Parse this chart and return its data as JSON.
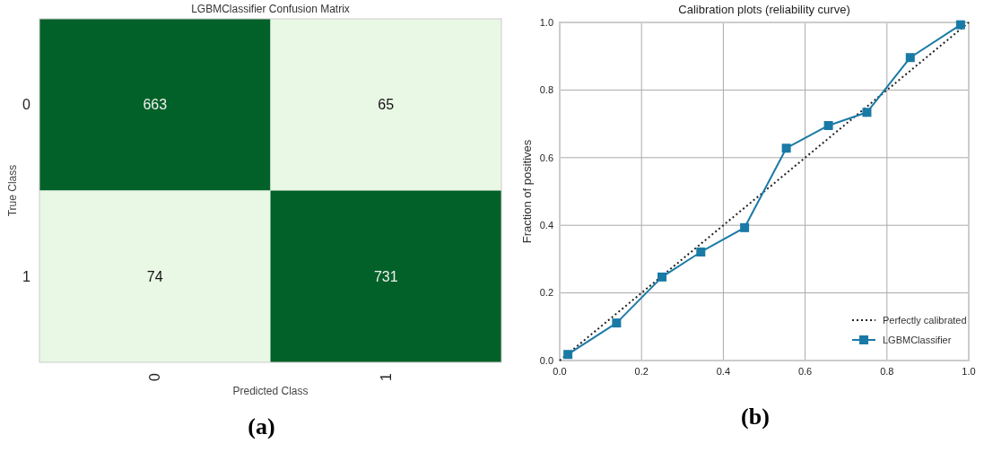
{
  "chart_data": [
    {
      "type": "heatmap",
      "title": "LGBMClassifier Confusion Matrix",
      "xlabel": "Predicted Class",
      "ylabel": "True Class",
      "categories": [
        "0",
        "1"
      ],
      "y_categories": [
        "0",
        "1"
      ],
      "cells": [
        [
          663,
          65
        ],
        [
          74,
          731
        ]
      ],
      "data_labels": true,
      "grid": false,
      "annotations": [
        "(a)"
      ]
    },
    {
      "type": "line",
      "title": "Calibration plots  (reliability curve)",
      "ylabel": "Fraction of positives",
      "xlim": [
        0,
        1
      ],
      "ylim": [
        0,
        1
      ],
      "xticks": [
        {
          "value": 0,
          "label": "0.0"
        },
        0.2,
        0.4,
        0.6,
        0.8,
        {
          "value": 1,
          "label": "1.0"
        }
      ],
      "yticks": [
        {
          "value": 0,
          "label": "0.0"
        },
        0.2,
        0.4,
        0.6,
        0.8,
        {
          "value": 1,
          "label": "1.0"
        }
      ],
      "grid": true,
      "legend": "bottom right",
      "annotations": [
        "(b)"
      ],
      "series": [
        {
          "name": "Perfectly calibrated",
          "color": "#222222",
          "x": [
            0,
            1
          ],
          "values": [
            0,
            1
          ],
          "line_style": "dotted",
          "marker": "none"
        },
        {
          "name": "LGBMClassifier",
          "color": "#1a7aa6",
          "x": [
            0.02,
            0.139,
            0.25,
            0.345,
            0.452,
            0.554,
            0.657,
            0.751,
            0.857,
            0.98
          ],
          "values": [
            0.018,
            0.111,
            0.247,
            0.321,
            0.393,
            0.628,
            0.695,
            0.734,
            0.896,
            0.993
          ],
          "line_style": "solid",
          "marker": "square"
        }
      ]
    }
  ]
}
